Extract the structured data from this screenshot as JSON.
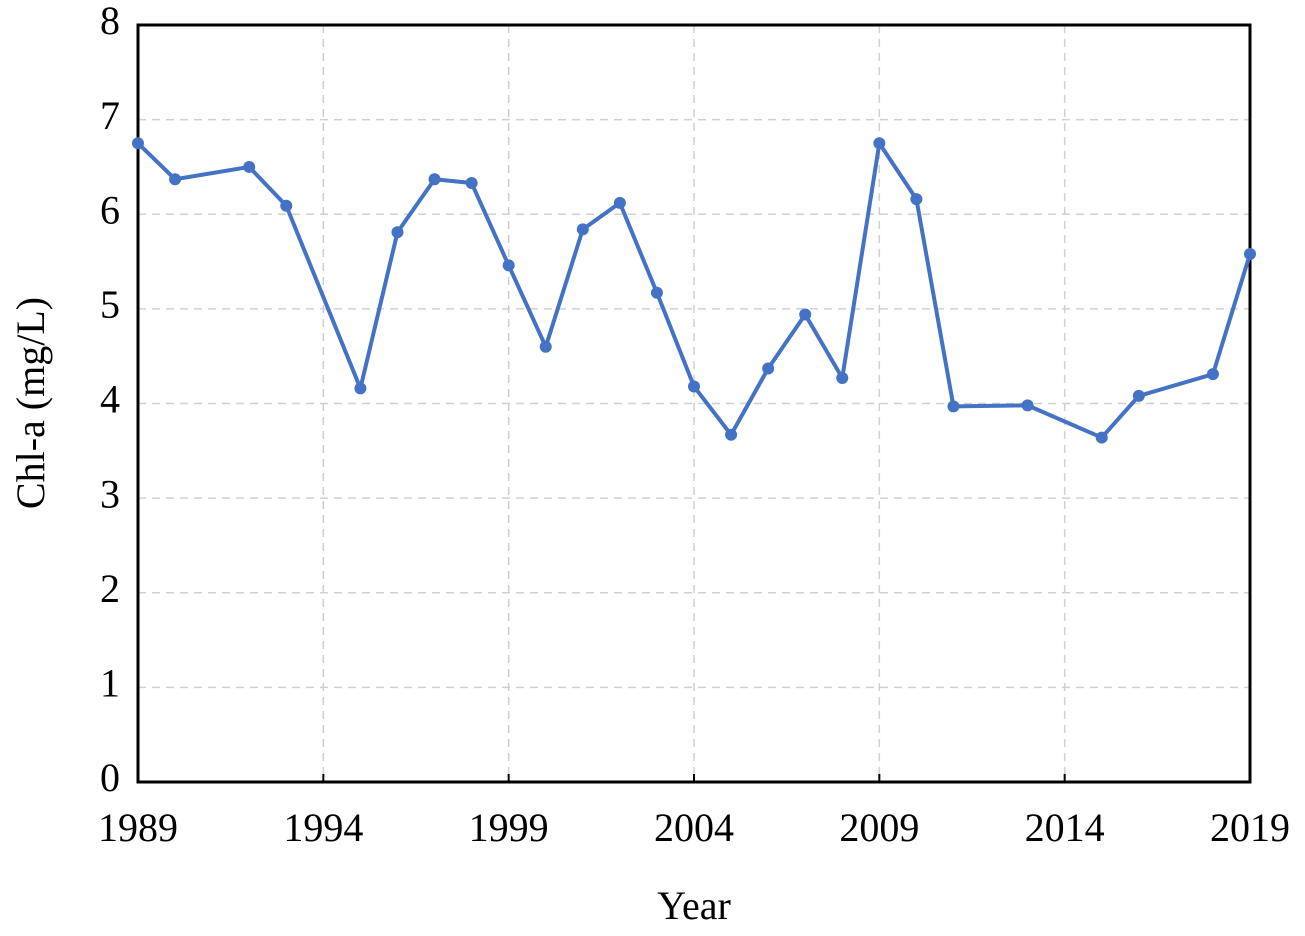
{
  "chart_data": {
    "type": "line",
    "x_label": "Year",
    "y_label": "Chl-a (mg/L)",
    "x": [
      1989,
      1990,
      1992,
      1993,
      1995,
      1996,
      1997,
      1998,
      1999,
      2000,
      2001,
      2002,
      2003,
      2004,
      2005,
      2006,
      2007,
      2008,
      2009,
      2010,
      2011,
      2013,
      2015,
      2016,
      2018,
      2019
    ],
    "series": [
      {
        "name": "Chl-a",
        "color": "#4472c4",
        "values": [
          6.75,
          6.37,
          6.5,
          6.09,
          4.16,
          5.81,
          6.37,
          6.33,
          5.46,
          4.6,
          5.84,
          6.12,
          5.17,
          4.18,
          3.67,
          4.37,
          4.94,
          4.27,
          6.75,
          6.16,
          3.97,
          3.98,
          3.64,
          4.08,
          4.31,
          5.58
        ]
      }
    ],
    "xlim": [
      1989,
      2019
    ],
    "xticks": [
      1989,
      1994,
      1999,
      2004,
      2009,
      2014,
      2019
    ],
    "ylim": [
      0,
      8
    ],
    "yticks": [
      0,
      1,
      2,
      3,
      4,
      5,
      6,
      7,
      8
    ],
    "grid": true
  }
}
